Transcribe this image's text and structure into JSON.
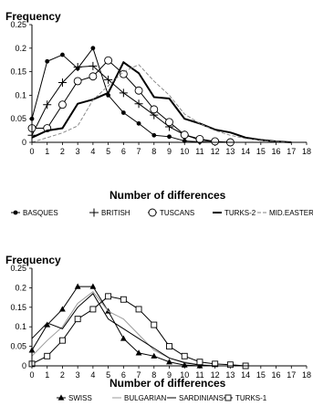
{
  "chart_data": [
    {
      "type": "line",
      "ylabel": "Frequency",
      "xlabel": "Number of differences",
      "xlim": [
        0,
        18
      ],
      "ylim": [
        0,
        0.25
      ],
      "x_ticks": [
        "0",
        "1",
        "2",
        "3",
        "4",
        "5",
        "6",
        "7",
        "8",
        "9",
        "10",
        "11",
        "12",
        "13",
        "14",
        "15",
        "16",
        "17",
        "18"
      ],
      "y_ticks": [
        "0",
        "0.05",
        "0.1",
        "0.15",
        "0.2",
        "0.25"
      ],
      "legend_position": "bottom",
      "series": [
        {
          "name": "BASQUES",
          "marker": "dot",
          "style": "solid",
          "color": "#000000",
          "x": [
            0,
            1,
            2,
            3,
            4,
            5,
            6,
            7,
            8,
            9,
            10,
            11,
            12
          ],
          "y": [
            0.05,
            0.172,
            0.186,
            0.157,
            0.2,
            0.1,
            0.063,
            0.04,
            0.015,
            0.012,
            0.003,
            0.001,
            0.0
          ]
        },
        {
          "name": "BRITISH",
          "marker": "plus",
          "style": "solid",
          "color": "#000000",
          "x": [
            0,
            1,
            2,
            3,
            4,
            5,
            6,
            7,
            8,
            9,
            10,
            11,
            12,
            13
          ],
          "y": [
            0.015,
            0.08,
            0.127,
            0.16,
            0.162,
            0.133,
            0.105,
            0.082,
            0.058,
            0.033,
            0.016,
            0.005,
            0.001,
            0.0
          ]
        },
        {
          "name": "TUSCANS",
          "marker": "circle",
          "style": "solid",
          "color": "#000000",
          "x": [
            0,
            1,
            2,
            3,
            4,
            5,
            6,
            7,
            8,
            9,
            10,
            11,
            12,
            13
          ],
          "y": [
            0.03,
            0.03,
            0.08,
            0.13,
            0.14,
            0.174,
            0.145,
            0.11,
            0.07,
            0.043,
            0.016,
            0.007,
            0.002,
            0.0
          ]
        },
        {
          "name": "TURKS-2",
          "marker": "none",
          "style": "thick",
          "color": "#000000",
          "x": [
            0,
            1,
            2,
            3,
            4,
            5,
            6,
            7,
            8,
            9,
            10,
            11,
            12,
            13,
            14,
            15,
            16,
            17
          ],
          "y": [
            0.01,
            0.025,
            0.03,
            0.082,
            0.091,
            0.105,
            0.17,
            0.147,
            0.096,
            0.093,
            0.05,
            0.04,
            0.027,
            0.021,
            0.01,
            0.005,
            0.002,
            0.0
          ]
        },
        {
          "name": "MID.EASTER",
          "marker": "none",
          "style": "dashed",
          "color": "#808080",
          "x": [
            0,
            1,
            2,
            3,
            4,
            5,
            6,
            7,
            8,
            9,
            10,
            11,
            12,
            13,
            14,
            15,
            16,
            17
          ],
          "y": [
            0.0,
            0.01,
            0.02,
            0.035,
            0.09,
            0.12,
            0.15,
            0.165,
            0.13,
            0.1,
            0.06,
            0.04,
            0.025,
            0.015,
            0.008,
            0.004,
            0.002,
            0.0
          ]
        }
      ]
    },
    {
      "type": "line",
      "ylabel": "Frequency",
      "xlabel": "Number of differences",
      "xlim": [
        0,
        18
      ],
      "ylim": [
        0,
        0.25
      ],
      "x_ticks": [
        "0",
        "1",
        "2",
        "3",
        "4",
        "5",
        "6",
        "7",
        "8",
        "9",
        "10",
        "11",
        "12",
        "13",
        "14",
        "15",
        "16",
        "17",
        "18"
      ],
      "y_ticks": [
        "0",
        "0.05",
        "0.1",
        "0.15",
        "0.2",
        "0.25"
      ],
      "legend_position": "bottom",
      "series": [
        {
          "name": "SWISS",
          "marker": "triangle",
          "style": "solid",
          "color": "#000000",
          "x": [
            0,
            1,
            2,
            3,
            4,
            5,
            6,
            7,
            8,
            9,
            10,
            11
          ],
          "y": [
            0.04,
            0.105,
            0.145,
            0.203,
            0.203,
            0.14,
            0.07,
            0.033,
            0.025,
            0.01,
            0.002,
            0.0
          ]
        },
        {
          "name": "BULGARIAN",
          "marker": "none",
          "style": "solid",
          "color": "#9a9a9a",
          "x": [
            0,
            1,
            2,
            3,
            4,
            5,
            6,
            7,
            8,
            9,
            10,
            11,
            12
          ],
          "y": [
            0.025,
            0.065,
            0.1,
            0.16,
            0.19,
            0.14,
            0.12,
            0.08,
            0.04,
            0.02,
            0.01,
            0.003,
            0.0
          ]
        },
        {
          "name": "SARDINIANS",
          "marker": "none",
          "style": "solid",
          "color": "#000000",
          "x": [
            0,
            1,
            2,
            3,
            4,
            5,
            6,
            7,
            8,
            9,
            10,
            11,
            12
          ],
          "y": [
            0.07,
            0.11,
            0.095,
            0.15,
            0.185,
            0.12,
            0.095,
            0.07,
            0.045,
            0.02,
            0.008,
            0.002,
            0.0
          ]
        },
        {
          "name": "TURKS-1",
          "marker": "square",
          "style": "solid",
          "color": "#000000",
          "x": [
            0,
            1,
            2,
            3,
            4,
            5,
            6,
            7,
            8,
            9,
            10,
            11,
            12,
            13,
            14
          ],
          "y": [
            0.005,
            0.025,
            0.065,
            0.12,
            0.145,
            0.178,
            0.17,
            0.145,
            0.105,
            0.05,
            0.025,
            0.01,
            0.005,
            0.003,
            0.0
          ]
        }
      ]
    }
  ]
}
